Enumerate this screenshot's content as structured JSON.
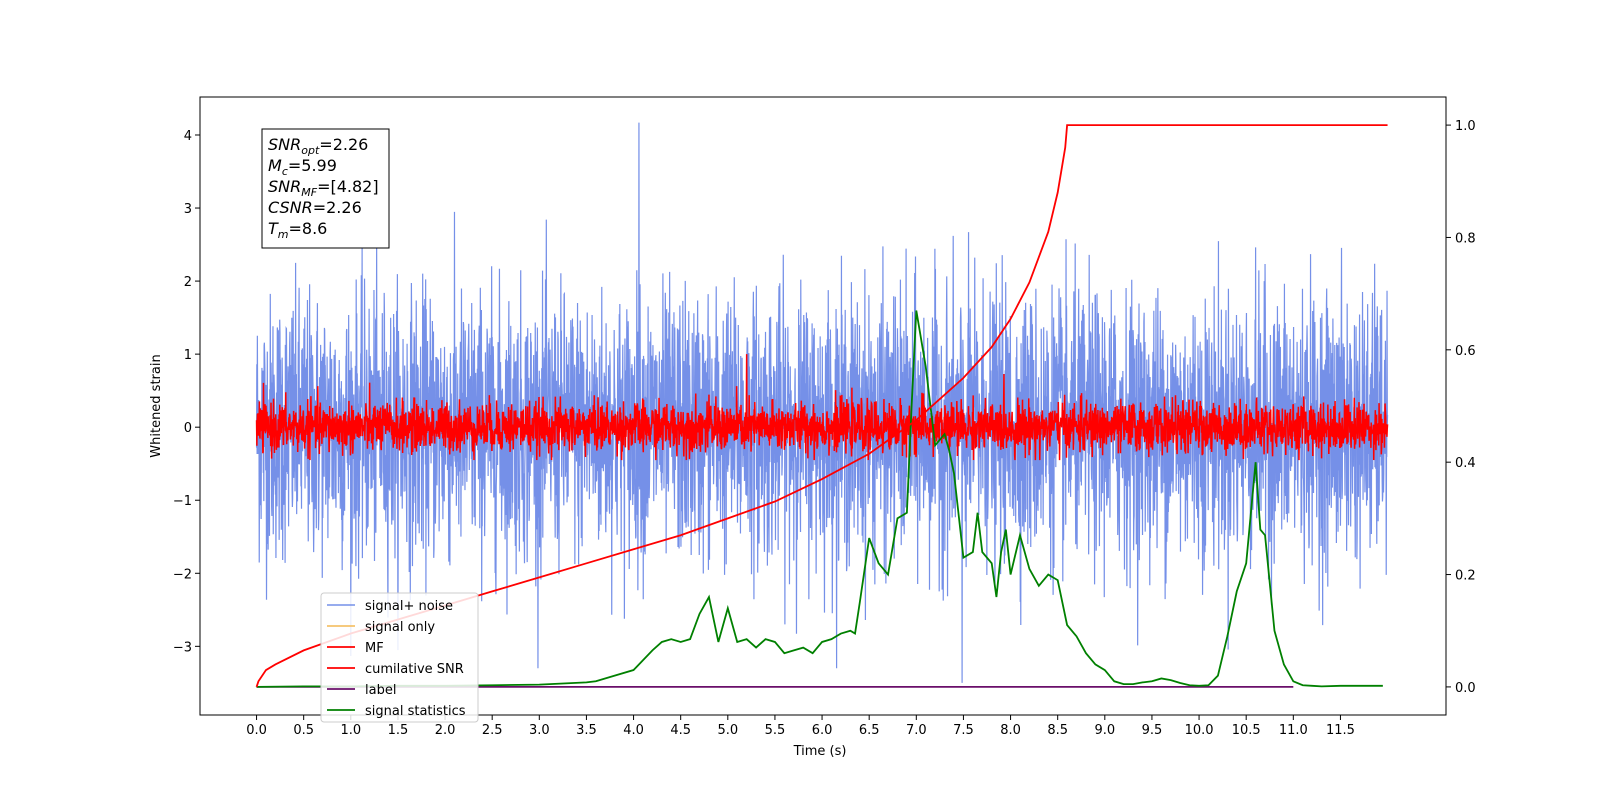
{
  "chart_data": {
    "type": "line",
    "xlabel": "Time (s)",
    "ylabel": "Whitened strain",
    "xlim": [
      -0.6,
      12.62
    ],
    "ylim_left": [
      -3.94,
      4.52
    ],
    "ylim_right": [
      -0.05,
      1.05
    ],
    "x_tick_labels": [
      "0.0",
      "0.5",
      "1.0",
      "1.5",
      "2.0",
      "2.5",
      "3.0",
      "3.5",
      "4.0",
      "4.5",
      "5.0",
      "5.5",
      "6.0",
      "6.5",
      "7.0",
      "7.5",
      "8.0",
      "8.5",
      "9.0",
      "9.5",
      "10.0",
      "10.5",
      "11.0",
      "11.5"
    ],
    "y_left_ticks": [
      "4",
      "3",
      "2",
      "1",
      "0",
      "−1",
      "−2",
      "−3"
    ],
    "y_right_ticks": [
      "1.0",
      "0.8",
      "0.6",
      "0.4",
      "0.2",
      "0.0"
    ],
    "info_box": [
      {
        "label": "SNR",
        "sub": "opt",
        "value": "=2.26"
      },
      {
        "label": "M",
        "sub": "c",
        "value": "=5.99"
      },
      {
        "label": "SNR",
        "sub": "MF",
        "value": "=[4.82]"
      },
      {
        "label": "CSNR",
        "sub": "",
        "value": "=2.26"
      },
      {
        "label": "T",
        "sub": "m",
        "value": "=8.6"
      }
    ],
    "legend_placement": "lower-left",
    "series": [
      {
        "name": "signal+ noise",
        "color": "#7590e8",
        "axis": "left",
        "x_range": [
          0,
          12.0
        ],
        "band_center": 0.0,
        "band_typical": 1.6,
        "peak_max": 4.17,
        "peak_min": -3.5
      },
      {
        "name": "signal only",
        "color": "#f5c26b",
        "axis": "left",
        "values": []
      },
      {
        "name": "MF",
        "color": "#ff0000",
        "axis": "left",
        "x_range": [
          0,
          12.0
        ],
        "band_center": 0.0,
        "band_typical": 0.3,
        "peak_max": 1.0
      },
      {
        "name": "cumilative SNR",
        "color": "#ff0000",
        "axis": "right",
        "x": [
          0,
          0.02,
          0.1,
          0.2,
          0.5,
          1.0,
          1.5,
          2.0,
          2.5,
          3.0,
          3.5,
          4.0,
          4.5,
          5.0,
          5.5,
          6.0,
          6.5,
          7.0,
          7.5,
          7.8,
          8.0,
          8.2,
          8.4,
          8.5,
          8.55,
          8.58,
          8.6,
          12.0
        ],
        "y": [
          0,
          0.01,
          0.03,
          0.04,
          0.065,
          0.095,
          0.12,
          0.145,
          0.17,
          0.195,
          0.22,
          0.245,
          0.27,
          0.3,
          0.33,
          0.37,
          0.415,
          0.475,
          0.55,
          0.605,
          0.655,
          0.72,
          0.81,
          0.88,
          0.93,
          0.96,
          1.0,
          1.0
        ]
      },
      {
        "name": "label",
        "color": "#6a0f6a",
        "axis": "right",
        "x": [
          0,
          11.0
        ],
        "y": [
          0.0,
          0.0
        ]
      },
      {
        "name": "signal statistics",
        "color": "#008000",
        "axis": "right",
        "x": [
          0,
          0.5,
          1.0,
          1.5,
          2.0,
          2.5,
          3.0,
          3.5,
          3.6,
          3.8,
          4.0,
          4.2,
          4.3,
          4.4,
          4.5,
          4.6,
          4.7,
          4.8,
          4.9,
          5.0,
          5.1,
          5.2,
          5.3,
          5.4,
          5.5,
          5.6,
          5.7,
          5.8,
          5.9,
          6.0,
          6.1,
          6.2,
          6.3,
          6.35,
          6.4,
          6.5,
          6.6,
          6.7,
          6.8,
          6.9,
          6.95,
          7.0,
          7.1,
          7.2,
          7.3,
          7.35,
          7.4,
          7.5,
          7.6,
          7.65,
          7.7,
          7.8,
          7.85,
          7.9,
          7.95,
          8.0,
          8.1,
          8.2,
          8.3,
          8.4,
          8.5,
          8.6,
          8.7,
          8.8,
          8.9,
          9.0,
          9.1,
          9.2,
          9.3,
          9.4,
          9.5,
          9.6,
          9.7,
          9.8,
          9.9,
          10.0,
          10.1,
          10.2,
          10.3,
          10.4,
          10.5,
          10.6,
          10.65,
          10.7,
          10.8,
          10.9,
          11.0,
          11.1,
          11.2,
          11.3,
          11.5,
          11.8,
          11.95
        ],
        "y": [
          0.0,
          0.001,
          0.001,
          0.002,
          0.002,
          0.003,
          0.004,
          0.008,
          0.01,
          0.02,
          0.03,
          0.065,
          0.08,
          0.085,
          0.08,
          0.085,
          0.13,
          0.16,
          0.08,
          0.14,
          0.08,
          0.085,
          0.07,
          0.085,
          0.08,
          0.06,
          0.065,
          0.07,
          0.06,
          0.08,
          0.085,
          0.095,
          0.1,
          0.095,
          0.15,
          0.265,
          0.22,
          0.2,
          0.3,
          0.31,
          0.5,
          0.67,
          0.57,
          0.43,
          0.45,
          0.42,
          0.38,
          0.23,
          0.24,
          0.31,
          0.24,
          0.22,
          0.16,
          0.24,
          0.28,
          0.2,
          0.27,
          0.21,
          0.18,
          0.2,
          0.19,
          0.11,
          0.09,
          0.06,
          0.04,
          0.03,
          0.01,
          0.005,
          0.005,
          0.008,
          0.01,
          0.015,
          0.012,
          0.007,
          0.003,
          0.002,
          0.003,
          0.02,
          0.09,
          0.17,
          0.22,
          0.4,
          0.28,
          0.27,
          0.1,
          0.04,
          0.01,
          0.003,
          0.002,
          0.001,
          0.002,
          0.002,
          0.002
        ]
      }
    ]
  }
}
